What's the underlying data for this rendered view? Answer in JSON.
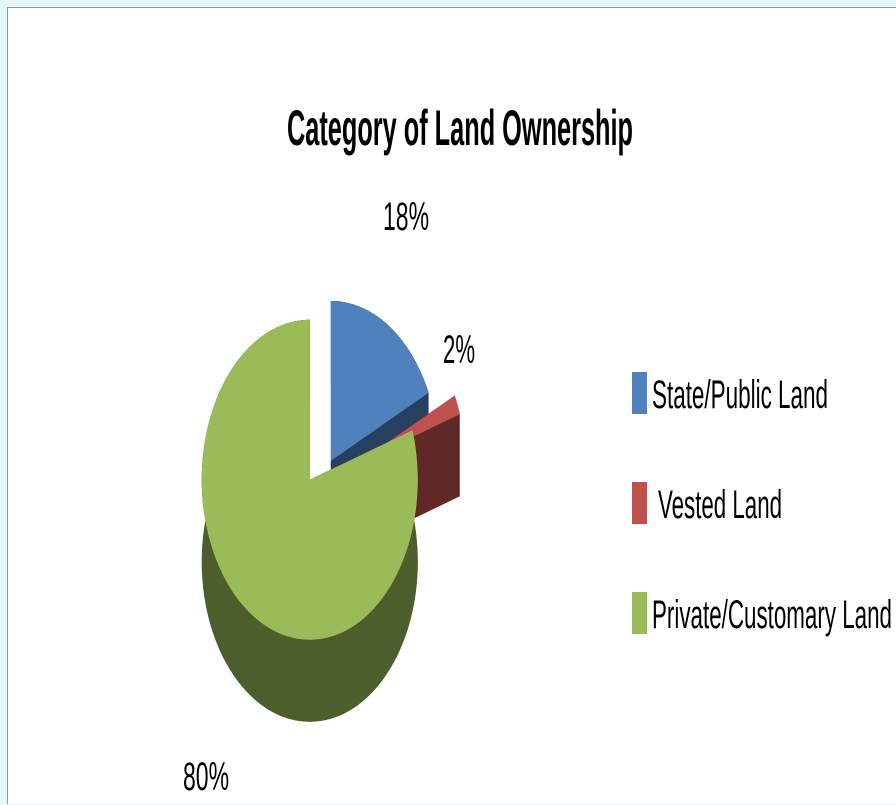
{
  "chart_data": {
    "type": "pie",
    "style": "3d-exploded",
    "title": "Category of Land Ownership",
    "legend_position": "right",
    "slices": [
      {
        "label": "State/Public Land",
        "value": 18,
        "data_label": "18%",
        "color": "#4f81bd",
        "side_color": "#27405f"
      },
      {
        "label": "Vested Land",
        "value": 2,
        "data_label": "2%",
        "color": "#c0504d",
        "side_color": "#602826"
      },
      {
        "label": "Private/Customary Land",
        "value": 80,
        "data_label": "80%",
        "color": "#9bbb59",
        "side_color": "#4d5e2c"
      }
    ]
  }
}
